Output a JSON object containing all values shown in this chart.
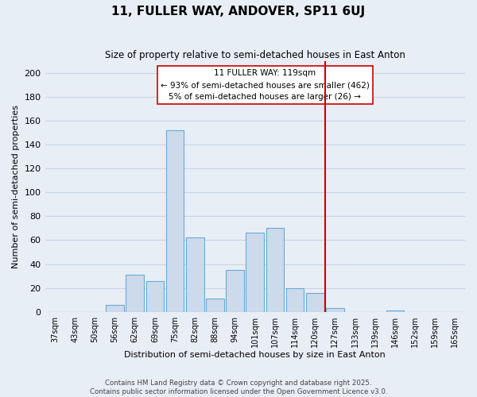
{
  "title": "11, FULLER WAY, ANDOVER, SP11 6UJ",
  "subtitle": "Size of property relative to semi-detached houses in East Anton",
  "xlabel": "Distribution of semi-detached houses by size in East Anton",
  "ylabel": "Number of semi-detached properties",
  "footer1": "Contains HM Land Registry data © Crown copyright and database right 2025.",
  "footer2": "Contains public sector information licensed under the Open Government Licence v3.0.",
  "bar_labels": [
    "37sqm",
    "43sqm",
    "50sqm",
    "56sqm",
    "62sqm",
    "69sqm",
    "75sqm",
    "82sqm",
    "88sqm",
    "94sqm",
    "101sqm",
    "107sqm",
    "114sqm",
    "120sqm",
    "127sqm",
    "133sqm",
    "139sqm",
    "146sqm",
    "152sqm",
    "159sqm",
    "165sqm"
  ],
  "bar_values": [
    0,
    0,
    0,
    6,
    31,
    26,
    152,
    62,
    11,
    35,
    66,
    70,
    20,
    16,
    3,
    0,
    0,
    1,
    0,
    0,
    0
  ],
  "bar_color": "#ccdaec",
  "bar_edge_color": "#6aaad4",
  "grid_color": "#c8d4e4",
  "bg_color": "#e8eef6",
  "red_line_index": 13,
  "red_line_color": "#cc0000",
  "legend_title": "11 FULLER WAY: 119sqm",
  "legend_line1": "← 93% of semi-detached houses are smaller (462)",
  "legend_line2": "5% of semi-detached houses are larger (26) →",
  "ylim": [
    0,
    210
  ],
  "yticks": [
    0,
    20,
    40,
    60,
    80,
    100,
    120,
    140,
    160,
    180,
    200
  ]
}
